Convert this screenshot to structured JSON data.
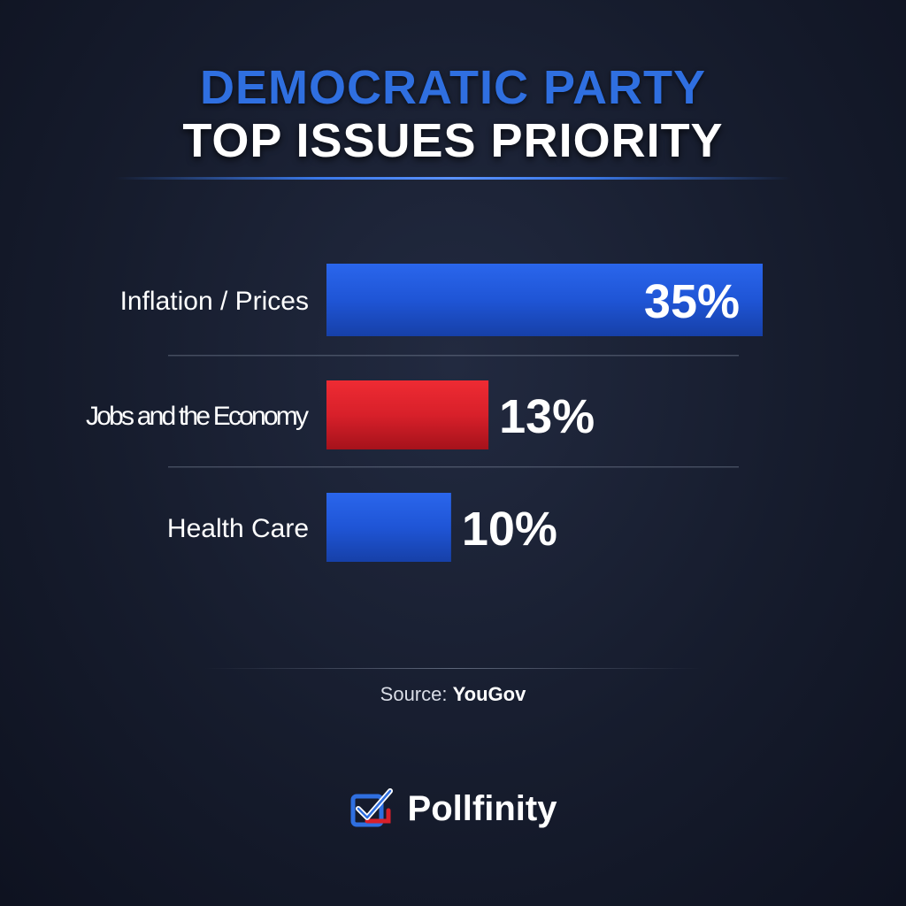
{
  "header": {
    "title_line1": "DEMOCRATIC PARTY",
    "title_line2": "TOP ISSUES PRIORITY"
  },
  "chart_data": {
    "type": "bar",
    "orientation": "horizontal",
    "categories": [
      "Inflation / Prices",
      "Jobs and the Economy",
      "Health Care"
    ],
    "values": [
      35,
      13,
      10
    ],
    "value_labels": [
      "35%",
      "13%",
      "10%"
    ],
    "unit": "%",
    "bar_colors": [
      "#1f55d6",
      "#d8202a",
      "#1f55d6"
    ],
    "xlim": [
      0,
      35
    ],
    "grid": false,
    "legend": "none"
  },
  "footer": {
    "source_prefix": "Source:",
    "source_name": "YouGov",
    "brand": "Pollfinity",
    "brand_icon": "checkbox-check-icon"
  },
  "colors": {
    "accent_blue": "#2f6fe0",
    "accent_red": "#d8202a",
    "background": "#161c2d"
  }
}
